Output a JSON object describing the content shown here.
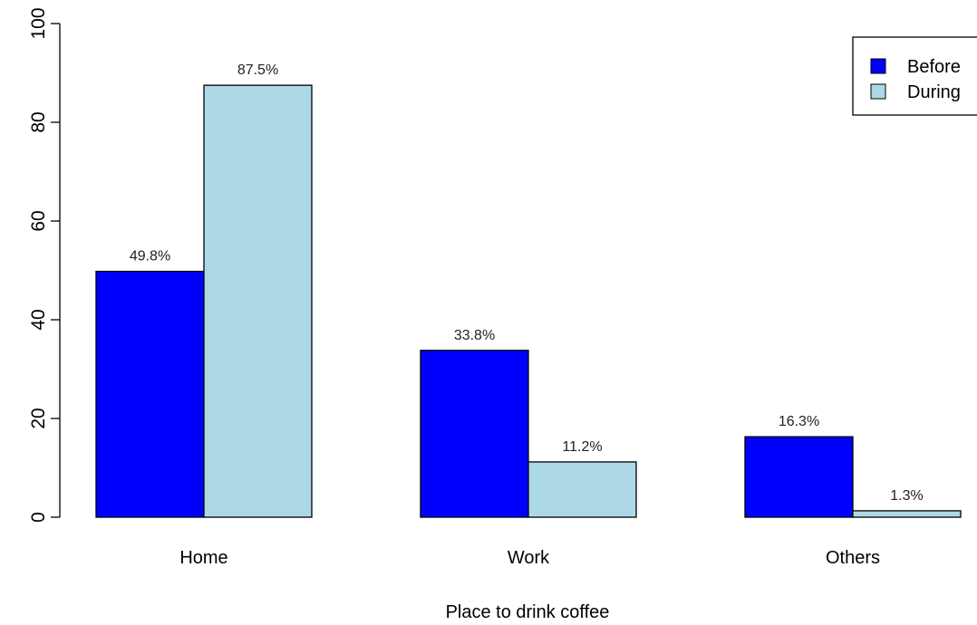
{
  "chart_data": {
    "type": "bar",
    "categories": [
      "Home",
      "Work",
      "Others"
    ],
    "series": [
      {
        "name": "Before",
        "values": [
          49.8,
          33.8,
          16.3
        ],
        "labels": [
          "49.8%",
          "33.8%",
          "16.3%"
        ],
        "color": "#0000FF"
      },
      {
        "name": "During",
        "values": [
          87.5,
          11.2,
          1.3
        ],
        "labels": [
          "87.5%",
          "11.2%",
          "1.3%"
        ],
        "color": "#ADD8E6"
      }
    ],
    "xlabel": "Place to drink coffee",
    "ylabel": "",
    "ylim": [
      0,
      100
    ],
    "yticks": [
      0,
      20,
      40,
      60,
      80,
      100
    ],
    "ytick_labels": [
      "0",
      "20",
      "40",
      "60",
      "80",
      "100"
    ],
    "grid": false,
    "legend_position": "top-right"
  }
}
